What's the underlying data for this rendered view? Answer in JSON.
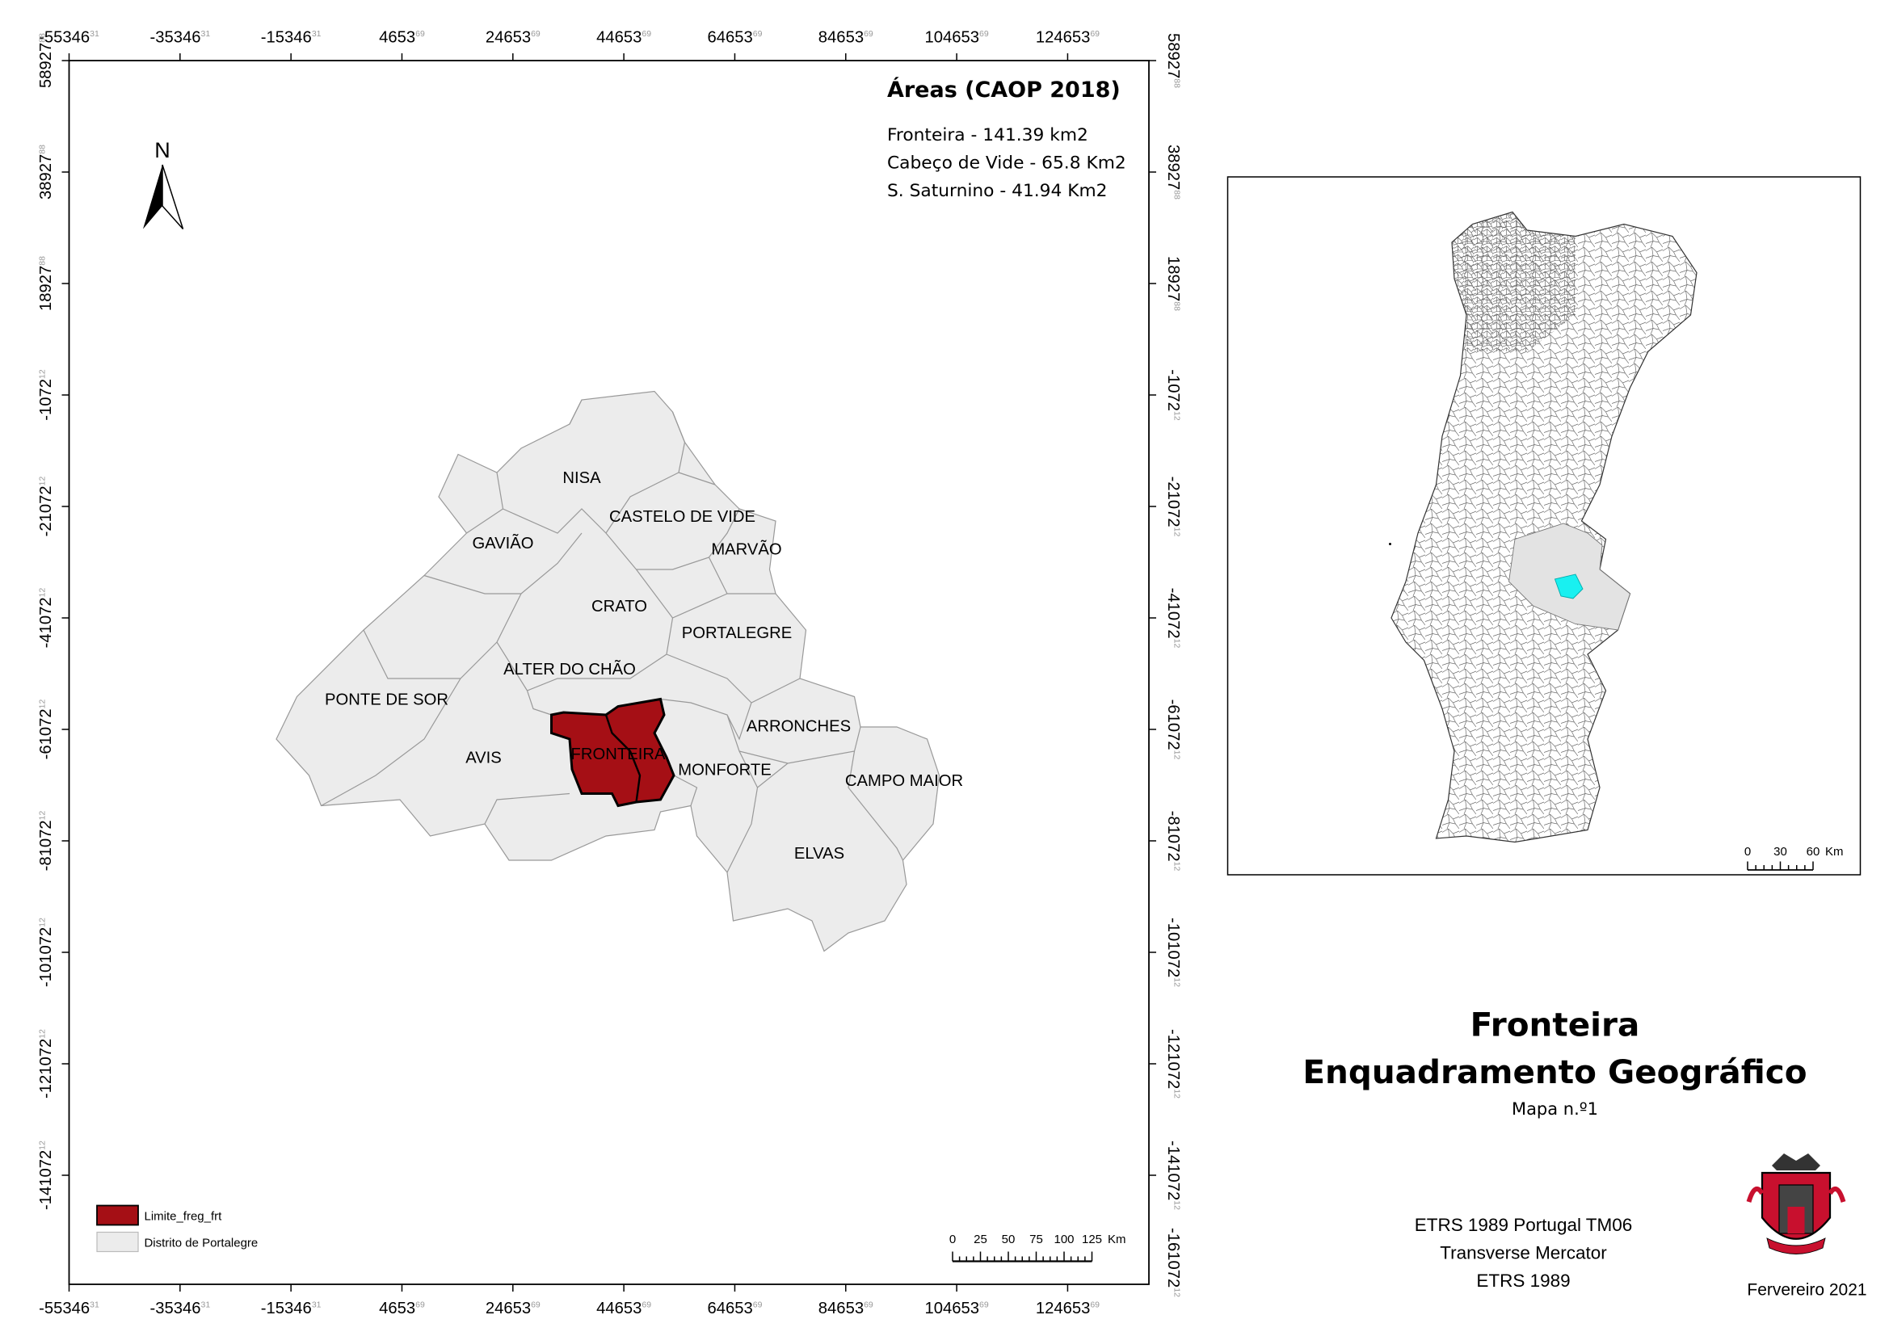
{
  "coordinates": {
    "x": [
      {
        "main": "-55346",
        "sup": "31"
      },
      {
        "main": "-35346",
        "sup": "31"
      },
      {
        "main": "-15346",
        "sup": "31"
      },
      {
        "main": "4653",
        "sup": "69"
      },
      {
        "main": "24653",
        "sup": "69"
      },
      {
        "main": "44653",
        "sup": "69"
      },
      {
        "main": "64653",
        "sup": "69"
      },
      {
        "main": "84653",
        "sup": "69"
      },
      {
        "main": "104653",
        "sup": "69"
      },
      {
        "main": "124653",
        "sup": "69"
      }
    ],
    "y": [
      {
        "main": "58927",
        "sup": "88"
      },
      {
        "main": "38927",
        "sup": "88"
      },
      {
        "main": "18927",
        "sup": "88"
      },
      {
        "main": "-1072",
        "sup": "12"
      },
      {
        "main": "-21072",
        "sup": "12"
      },
      {
        "main": "-41072",
        "sup": "12"
      },
      {
        "main": "-61072",
        "sup": "12"
      },
      {
        "main": "-81072",
        "sup": "12"
      },
      {
        "main": "-101072",
        "sup": "12"
      },
      {
        "main": "-121072",
        "sup": "12"
      },
      {
        "main": "-141072",
        "sup": "12"
      },
      {
        "main": "-161072",
        "sup": "12"
      }
    ]
  },
  "areas": {
    "title": "Áreas (CAOP 2018)",
    "items": [
      "Fronteira - 141.39 km2",
      "Cabeço de Vide - 65.8 Km2",
      "S. Saturnino - 41.94 Km2"
    ]
  },
  "north": "N",
  "municipalities": [
    "NISA",
    "CASTELO DE VIDE",
    "GAVIÃO",
    "MARVÃO",
    "CRATO",
    "PORTALEGRE",
    "ALTER DO CHÃO",
    "PONTE DE SOR",
    "ARRONCHES",
    "AVIS",
    "FRONTEIRA",
    "MONFORTE",
    "CAMPO MAIOR",
    "ELVAS"
  ],
  "legend": [
    "Limite_freg_frt",
    "Distrito de Portalegre"
  ],
  "scale_bar": {
    "labels": [
      "0",
      "25",
      "50",
      "75",
      "100",
      "125"
    ],
    "unit": "Km"
  },
  "inset_scale": {
    "labels": [
      "0",
      "30",
      "60"
    ],
    "unit": "Km"
  },
  "title": {
    "main": "Fronteira",
    "subtitle": "Enquadramento Geográfico",
    "map_number": "Mapa n.º1"
  },
  "projection": [
    "ETRS 1989 Portugal TM06",
    "Transverse Mercator",
    "ETRS 1989"
  ],
  "date": "Fervereiro 2021"
}
